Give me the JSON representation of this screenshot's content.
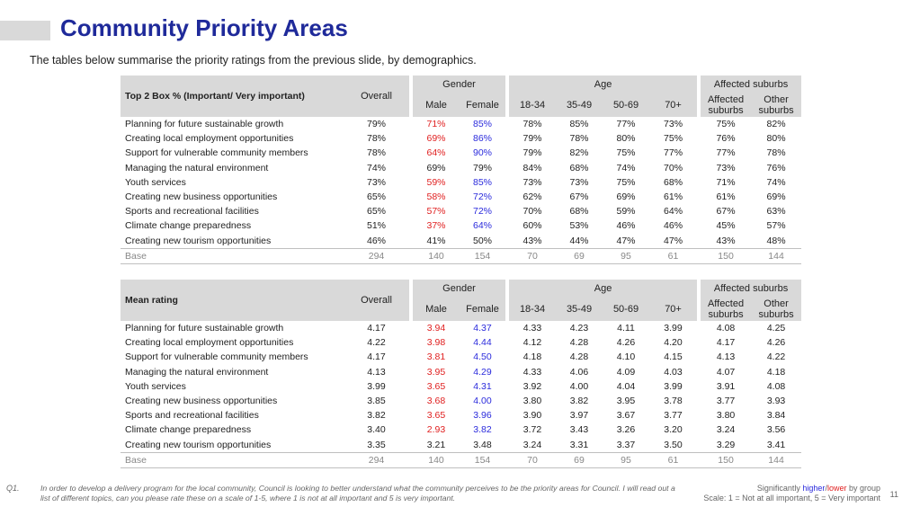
{
  "title": "Community Priority Areas",
  "subtitle": "The tables below summarise the priority ratings from the previous slide, by demographics.",
  "headers": {
    "group_gender": "Gender",
    "group_age": "Age",
    "group_suburbs": "Affected suburbs",
    "overall": "Overall",
    "male": "Male",
    "female": "Female",
    "age1": "18-34",
    "age2": "35-49",
    "age3": "50-69",
    "age4": "70+",
    "affected": "Affected suburbs",
    "other": "Other suburbs"
  },
  "table1": {
    "caption": "Top 2 Box % (Important/ Very important)",
    "rows": [
      {
        "label": "Planning for future sustainable growth",
        "values": [
          "79%",
          "71%",
          "85%",
          "78%",
          "85%",
          "77%",
          "73%",
          "75%",
          "82%"
        ],
        "flags": [
          "",
          "lo",
          "hi",
          "",
          "",
          "",
          "",
          "",
          ""
        ]
      },
      {
        "label": "Creating local employment opportunities",
        "values": [
          "78%",
          "69%",
          "86%",
          "79%",
          "78%",
          "80%",
          "75%",
          "76%",
          "80%"
        ],
        "flags": [
          "",
          "lo",
          "hi",
          "",
          "",
          "",
          "",
          "",
          ""
        ]
      },
      {
        "label": "Support for vulnerable community members",
        "values": [
          "78%",
          "64%",
          "90%",
          "79%",
          "82%",
          "75%",
          "77%",
          "77%",
          "78%"
        ],
        "flags": [
          "",
          "lo",
          "hi",
          "",
          "",
          "",
          "",
          "",
          ""
        ]
      },
      {
        "label": "Managing the natural environment",
        "values": [
          "74%",
          "69%",
          "79%",
          "84%",
          "68%",
          "74%",
          "70%",
          "73%",
          "76%"
        ],
        "flags": [
          "",
          "",
          "",
          "",
          "",
          "",
          "",
          "",
          ""
        ]
      },
      {
        "label": "Youth services",
        "values": [
          "73%",
          "59%",
          "85%",
          "73%",
          "73%",
          "75%",
          "68%",
          "71%",
          "74%"
        ],
        "flags": [
          "",
          "lo",
          "hi",
          "",
          "",
          "",
          "",
          "",
          ""
        ]
      },
      {
        "label": "Creating new business opportunities",
        "values": [
          "65%",
          "58%",
          "72%",
          "62%",
          "67%",
          "69%",
          "61%",
          "61%",
          "69%"
        ],
        "flags": [
          "",
          "lo",
          "hi",
          "",
          "",
          "",
          "",
          "",
          ""
        ]
      },
      {
        "label": "Sports and recreational facilities",
        "values": [
          "65%",
          "57%",
          "72%",
          "70%",
          "68%",
          "59%",
          "64%",
          "67%",
          "63%"
        ],
        "flags": [
          "",
          "lo",
          "hi",
          "",
          "",
          "",
          "",
          "",
          ""
        ]
      },
      {
        "label": "Climate change preparedness",
        "values": [
          "51%",
          "37%",
          "64%",
          "60%",
          "53%",
          "46%",
          "46%",
          "45%",
          "57%"
        ],
        "flags": [
          "",
          "lo",
          "hi",
          "",
          "",
          "",
          "",
          "",
          ""
        ]
      },
      {
        "label": "Creating new tourism opportunities",
        "values": [
          "46%",
          "41%",
          "50%",
          "43%",
          "44%",
          "47%",
          "47%",
          "43%",
          "48%"
        ],
        "flags": [
          "",
          "",
          "",
          "",
          "",
          "",
          "",
          "",
          ""
        ]
      }
    ],
    "base": {
      "label": "Base",
      "values": [
        "294",
        "140",
        "154",
        "70",
        "69",
        "95",
        "61",
        "150",
        "144"
      ]
    }
  },
  "table2": {
    "caption": "Mean rating",
    "rows": [
      {
        "label": "Planning for future sustainable growth",
        "values": [
          "4.17",
          "3.94",
          "4.37",
          "4.33",
          "4.23",
          "4.11",
          "3.99",
          "4.08",
          "4.25"
        ],
        "flags": [
          "",
          "lo",
          "hi",
          "",
          "",
          "",
          "",
          "",
          ""
        ]
      },
      {
        "label": "Creating local employment opportunities",
        "values": [
          "4.22",
          "3.98",
          "4.44",
          "4.12",
          "4.28",
          "4.26",
          "4.20",
          "4.17",
          "4.26"
        ],
        "flags": [
          "",
          "lo",
          "hi",
          "",
          "",
          "",
          "",
          "",
          ""
        ]
      },
      {
        "label": "Support for vulnerable community members",
        "values": [
          "4.17",
          "3.81",
          "4.50",
          "4.18",
          "4.28",
          "4.10",
          "4.15",
          "4.13",
          "4.22"
        ],
        "flags": [
          "",
          "lo",
          "hi",
          "",
          "",
          "",
          "",
          "",
          ""
        ]
      },
      {
        "label": "Managing the natural environment",
        "values": [
          "4.13",
          "3.95",
          "4.29",
          "4.33",
          "4.06",
          "4.09",
          "4.03",
          "4.07",
          "4.18"
        ],
        "flags": [
          "",
          "lo",
          "hi",
          "",
          "",
          "",
          "",
          "",
          ""
        ]
      },
      {
        "label": "Youth services",
        "values": [
          "3.99",
          "3.65",
          "4.31",
          "3.92",
          "4.00",
          "4.04",
          "3.99",
          "3.91",
          "4.08"
        ],
        "flags": [
          "",
          "lo",
          "hi",
          "",
          "",
          "",
          "",
          "",
          ""
        ]
      },
      {
        "label": "Creating new business opportunities",
        "values": [
          "3.85",
          "3.68",
          "4.00",
          "3.80",
          "3.82",
          "3.95",
          "3.78",
          "3.77",
          "3.93"
        ],
        "flags": [
          "",
          "lo",
          "hi",
          "",
          "",
          "",
          "",
          "",
          ""
        ]
      },
      {
        "label": "Sports and recreational facilities",
        "values": [
          "3.82",
          "3.65",
          "3.96",
          "3.90",
          "3.97",
          "3.67",
          "3.77",
          "3.80",
          "3.84"
        ],
        "flags": [
          "",
          "lo",
          "hi",
          "",
          "",
          "",
          "",
          "",
          ""
        ]
      },
      {
        "label": "Climate change preparedness",
        "values": [
          "3.40",
          "2.93",
          "3.82",
          "3.72",
          "3.43",
          "3.26",
          "3.20",
          "3.24",
          "3.56"
        ],
        "flags": [
          "",
          "lo",
          "hi",
          "",
          "",
          "",
          "",
          "",
          ""
        ]
      },
      {
        "label": "Creating new tourism opportunities",
        "values": [
          "3.35",
          "3.21",
          "3.48",
          "3.24",
          "3.31",
          "3.37",
          "3.50",
          "3.29",
          "3.41"
        ],
        "flags": [
          "",
          "",
          "",
          "",
          "",
          "",
          "",
          "",
          ""
        ]
      }
    ],
    "base": {
      "label": "Base",
      "values": [
        "294",
        "140",
        "154",
        "70",
        "69",
        "95",
        "61",
        "150",
        "144"
      ]
    }
  },
  "footer": {
    "q": "Q1.",
    "question": "In order to develop a delivery program for the local community, Council is looking to better understand what the community perceives to be the priority areas for Council. I will read out a list of different topics, can you please rate these on a scale of 1-5, where 1 is not at all important and 5 is very important.",
    "sig_prefix": "Significantly ",
    "sig_higher": "higher",
    "sig_sep": "/",
    "sig_lower": "lower",
    "sig_suffix": " by group",
    "scale": "Scale: 1 = Not at all important, 5 = Very important",
    "page": "11"
  },
  "colors": {
    "title": "#1f2a9a",
    "higher": "#2b2bdc",
    "lower": "#e02020",
    "header_bg": "#d9d9d9"
  }
}
